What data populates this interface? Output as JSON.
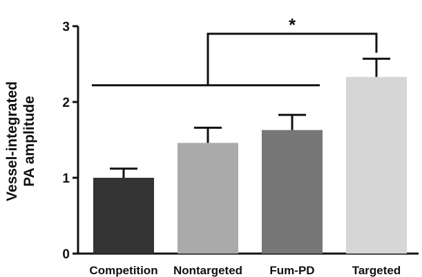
{
  "chart_data": {
    "type": "bar",
    "title": "",
    "xlabel": "",
    "ylabel_lines": [
      "Vessel-integrated",
      "PA amplitude"
    ],
    "categories": [
      "Competition",
      "Nontargeted",
      "Fum-PD",
      "Targeted"
    ],
    "values": [
      1.0,
      1.46,
      1.63,
      2.33
    ],
    "errors": [
      0.12,
      0.2,
      0.2,
      0.24
    ],
    "colors": [
      "#333333",
      "#aaaaaa",
      "#777777",
      "#d6d6d6"
    ],
    "ylim": [
      0,
      3
    ],
    "yticks": [
      0,
      1,
      2,
      3
    ],
    "grid": false,
    "legend": "none",
    "significance": {
      "label": "*",
      "group_line_categories": [
        "Competition",
        "Nontargeted",
        "Fum-PD"
      ],
      "bracket_to_category": "Targeted"
    }
  }
}
